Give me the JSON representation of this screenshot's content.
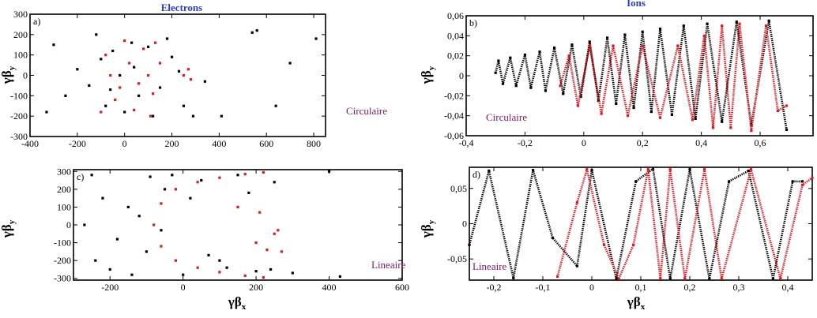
{
  "colors": {
    "series_black": "#000000",
    "series_red": "#e8141e",
    "title": "#2a3bd6",
    "mode_label": "#8a1a6a"
  },
  "titles": {
    "left": "Electrons",
    "right": "Ions"
  },
  "chart_data": [
    {
      "panel": "a)",
      "type": "scatter",
      "mode_label": "Circulaire",
      "xlabel": "γβ",
      "xlabel_sub": "x",
      "ylabel": "γβ",
      "ylabel_sub": "y",
      "xlim": [
        -400,
        850
      ],
      "ylim": [
        -300,
        300
      ],
      "xticks": [
        -400,
        -200,
        0,
        200,
        400,
        600,
        800
      ],
      "yticks": [
        -300,
        -200,
        -100,
        0,
        100,
        200,
        300
      ],
      "xticklabels": [
        "-400",
        "-200",
        "0",
        "200",
        "400",
        "600",
        "800"
      ],
      "yticklabels": [
        "-300",
        "-200",
        "-100",
        "0",
        "100",
        "200",
        "300"
      ],
      "series": [
        {
          "color": "#000000",
          "points": [
            [
              -150,
              -50
            ],
            [
              -100,
              80
            ],
            [
              -80,
              -150
            ],
            [
              -50,
              120
            ],
            [
              0,
              -180
            ],
            [
              30,
              160
            ],
            [
              60,
              -100
            ],
            [
              100,
              140
            ],
            [
              150,
              -60
            ],
            [
              200,
              90
            ],
            [
              250,
              -150
            ],
            [
              -200,
              30
            ],
            [
              -250,
              -100
            ],
            [
              -300,
              150
            ],
            [
              -330,
              -180
            ],
            [
              290,
              -200
            ],
            [
              410,
              -200
            ],
            [
              540,
              210
            ],
            [
              560,
              220
            ],
            [
              640,
              -150
            ],
            [
              810,
              180
            ],
            [
              700,
              60
            ],
            [
              340,
              -30
            ],
            [
              -120,
              200
            ],
            [
              120,
              -200
            ],
            [
              180,
              180
            ],
            [
              -20,
              0
            ],
            [
              40,
              40
            ],
            [
              -60,
              -70
            ],
            [
              230,
              20
            ]
          ]
        },
        {
          "color": "#e8141e",
          "points": [
            [
              -80,
              100
            ],
            [
              -40,
              -120
            ],
            [
              0,
              170
            ],
            [
              40,
              -170
            ],
            [
              80,
              130
            ],
            [
              120,
              -90
            ],
            [
              150,
              60
            ],
            [
              100,
              0
            ],
            [
              -60,
              0
            ],
            [
              20,
              60
            ],
            [
              60,
              -40
            ],
            [
              -20,
              -60
            ],
            [
              130,
              160
            ],
            [
              -100,
              -180
            ],
            [
              250,
              0
            ],
            [
              270,
              30
            ],
            [
              280,
              -20
            ],
            [
              110,
              -200
            ]
          ]
        }
      ]
    },
    {
      "panel": "b)",
      "type": "line",
      "mode_label": "Circulaire",
      "xlabel": "",
      "xlabel_sub": "",
      "ylabel": "γβ",
      "ylabel_sub": "y",
      "xlim": [
        -0.4,
        0.78
      ],
      "ylim": [
        -0.06,
        0.06
      ],
      "xticks": [
        -0.4,
        -0.2,
        0,
        0.2,
        0.4,
        0.6
      ],
      "yticks": [
        -0.06,
        -0.04,
        -0.02,
        0,
        0.02,
        0.04,
        0.06
      ],
      "xticklabels": [
        "-0,4",
        "-0,2",
        "0",
        "0,2",
        "0,4",
        "0,6"
      ],
      "yticklabels": [
        "-0,06",
        "-0,04",
        "-0,02",
        "0",
        "0,02",
        "0,04",
        "0,06"
      ],
      "series": [
        {
          "color": "#000000",
          "points": [
            [
              -0.3,
              0.003
            ],
            [
              -0.29,
              0.015
            ],
            [
              -0.275,
              -0.008
            ],
            [
              -0.25,
              0.018
            ],
            [
              -0.23,
              -0.01
            ],
            [
              -0.2,
              0.021
            ],
            [
              -0.18,
              -0.012
            ],
            [
              -0.15,
              0.024
            ],
            [
              -0.13,
              -0.015
            ],
            [
              -0.1,
              0.028
            ],
            [
              -0.07,
              -0.018
            ],
            [
              -0.04,
              0.031
            ],
            [
              -0.01,
              -0.021
            ],
            [
              0.02,
              0.034
            ],
            [
              0.05,
              -0.025
            ],
            [
              0.08,
              0.038
            ],
            [
              0.11,
              -0.028
            ],
            [
              0.14,
              0.041
            ],
            [
              0.17,
              -0.032
            ],
            [
              0.2,
              0.044
            ],
            [
              0.23,
              -0.036
            ],
            [
              0.26,
              0.047
            ],
            [
              0.3,
              -0.039
            ],
            [
              0.34,
              0.05
            ],
            [
              0.38,
              -0.043
            ],
            [
              0.42,
              0.052
            ],
            [
              0.47,
              -0.046
            ],
            [
              0.52,
              0.054
            ],
            [
              0.57,
              -0.049
            ],
            [
              0.63,
              0.055
            ],
            [
              0.69,
              -0.054
            ]
          ]
        },
        {
          "color": "#e8141e",
          "points": [
            [
              -0.08,
              -0.01
            ],
            [
              -0.05,
              0.02
            ],
            [
              -0.02,
              -0.03
            ],
            [
              0.02,
              0.03
            ],
            [
              0.06,
              -0.038
            ],
            [
              0.1,
              0.03
            ],
            [
              0.15,
              -0.04
            ],
            [
              0.2,
              0.03
            ],
            [
              0.26,
              -0.042
            ],
            [
              0.32,
              0.03
            ],
            [
              0.37,
              -0.044
            ],
            [
              0.41,
              0.04
            ],
            [
              0.44,
              -0.052
            ],
            [
              0.47,
              0.05
            ],
            [
              0.5,
              -0.052
            ],
            [
              0.53,
              0.052
            ],
            [
              0.57,
              -0.055
            ],
            [
              0.62,
              0.05
            ],
            [
              0.66,
              -0.035
            ],
            [
              0.69,
              -0.03
            ]
          ]
        }
      ]
    },
    {
      "panel": "c)",
      "type": "scatter",
      "mode_label": "Lineaire",
      "xlabel": "γβ",
      "xlabel_sub": "x",
      "ylabel": "γβ",
      "ylabel_sub": "y",
      "xlim": [
        -300,
        600
      ],
      "ylim": [
        -310,
        310
      ],
      "xticks": [
        -200,
        0,
        200,
        400,
        600
      ],
      "yticks": [
        -300,
        -200,
        -100,
        0,
        100,
        200,
        300
      ],
      "xticklabels": [
        "-200",
        "0",
        "200",
        "400",
        "600"
      ],
      "yticklabels": [
        "-300",
        "-200",
        "-100",
        "0",
        "100",
        "200",
        "300"
      ],
      "series": [
        {
          "color": "#000000",
          "points": [
            [
              -250,
              280
            ],
            [
              -200,
              -250
            ],
            [
              -150,
              100
            ],
            [
              -100,
              -150
            ],
            [
              -50,
              200
            ],
            [
              0,
              -280
            ],
            [
              50,
              250
            ],
            [
              100,
              -200
            ],
            [
              150,
              280
            ],
            [
              200,
              -260
            ],
            [
              250,
              240
            ],
            [
              300,
              -270
            ],
            [
              -270,
              0
            ],
            [
              -220,
              150
            ],
            [
              -180,
              -80
            ],
            [
              -120,
              50
            ],
            [
              -60,
              -30
            ],
            [
              20,
              150
            ],
            [
              400,
              300
            ],
            [
              430,
              -290
            ],
            [
              -240,
              -200
            ],
            [
              180,
              180
            ],
            [
              120,
              -240
            ],
            [
              -30,
              280
            ],
            [
              240,
              -250
            ],
            [
              -140,
              -280
            ],
            [
              -90,
              270
            ],
            [
              70,
              -170
            ]
          ]
        },
        {
          "color": "#e8141e",
          "points": [
            [
              -80,
              0
            ],
            [
              -60,
              -120
            ],
            [
              -60,
              120
            ],
            [
              -20,
              -200
            ],
            [
              -20,
              200
            ],
            [
              40,
              -240
            ],
            [
              40,
              240
            ],
            [
              100,
              -265
            ],
            [
              100,
              265
            ],
            [
              170,
              -285
            ],
            [
              170,
              285
            ],
            [
              220,
              -295
            ],
            [
              220,
              295
            ],
            [
              150,
              100
            ],
            [
              200,
              -100
            ],
            [
              250,
              -50
            ],
            [
              260,
              -30
            ],
            [
              230,
              -140
            ],
            [
              270,
              -150
            ],
            [
              210,
              70
            ]
          ]
        }
      ]
    },
    {
      "panel": "d)",
      "type": "line",
      "mode_label": "Lineaire",
      "xlabel": "γβ",
      "xlabel_sub": "x",
      "ylabel": "γβ",
      "ylabel_sub": "y",
      "xlim": [
        -0.25,
        0.45
      ],
      "ylim": [
        -0.08,
        0.08
      ],
      "xticks": [
        -0.2,
        -0.1,
        0,
        0.1,
        0.2,
        0.3,
        0.4
      ],
      "yticks": [
        -0.05,
        0,
        0.05
      ],
      "xticklabels": [
        "-0,2",
        "-0,1",
        "0",
        "0,1",
        "0,2",
        "0,3",
        "0,4"
      ],
      "yticklabels": [
        "-0,05",
        "0",
        "0,05"
      ],
      "series": [
        {
          "color": "#000000",
          "points": [
            [
              -0.25,
              -0.03
            ],
            [
              -0.21,
              0.075
            ],
            [
              -0.16,
              -0.077
            ],
            [
              -0.12,
              0.076
            ],
            [
              -0.08,
              -0.02
            ],
            [
              -0.03,
              -0.06
            ],
            [
              0.0,
              0.076
            ],
            [
              0.05,
              -0.078
            ],
            [
              0.09,
              0.06
            ],
            [
              0.125,
              0.078
            ],
            [
              0.16,
              -0.078
            ],
            [
              0.2,
              0.077
            ],
            [
              0.24,
              -0.078
            ],
            [
              0.28,
              0.06
            ],
            [
              0.32,
              0.075
            ],
            [
              0.37,
              -0.078
            ],
            [
              0.41,
              0.06
            ],
            [
              0.43,
              0.06
            ]
          ]
        },
        {
          "color": "#e8141e",
          "points": [
            [
              -0.07,
              -0.075
            ],
            [
              -0.03,
              0.03
            ],
            [
              -0.01,
              0.077
            ],
            [
              0.025,
              -0.03
            ],
            [
              0.055,
              -0.078
            ],
            [
              0.085,
              -0.03
            ],
            [
              0.115,
              0.077
            ],
            [
              0.14,
              -0.078
            ],
            [
              0.16,
              0.077
            ],
            [
              0.19,
              -0.078
            ],
            [
              0.23,
              0.077
            ],
            [
              0.265,
              -0.078
            ],
            [
              0.325,
              0.077
            ],
            [
              0.385,
              -0.078
            ],
            [
              0.43,
              0.055
            ],
            [
              0.45,
              0.065
            ]
          ]
        }
      ]
    }
  ]
}
